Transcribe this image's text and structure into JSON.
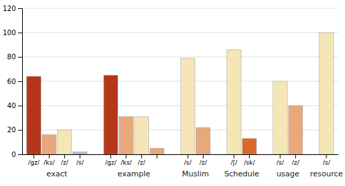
{
  "chart_data": {
    "type": "bar",
    "groups": [
      {
        "name": "exact",
        "categories": [
          "/gz/",
          "/ks/",
          "/z/",
          "/s/"
        ],
        "values": [
          64,
          16,
          20,
          2
        ],
        "colors": [
          "#b5371a",
          "#e8a87c",
          "#f5e6b8",
          "#a8c4d4"
        ]
      },
      {
        "name": "example",
        "categories": [
          "/gz/",
          "/ks/",
          "/z/",
          null
        ],
        "values": [
          65,
          31,
          31,
          5
        ],
        "colors": [
          "#b5371a",
          "#e8a87c",
          "#f5e6b8",
          "#e8a87c"
        ]
      },
      {
        "name": "Muslim",
        "categories": [
          "/s/",
          "/z/"
        ],
        "values": [
          79,
          22
        ],
        "colors": [
          "#f5e6b8",
          "#e8a87c"
        ]
      },
      {
        "name": "Schedule",
        "categories": [
          "/ʃ/",
          "/sk/"
        ],
        "values": [
          86,
          13
        ],
        "colors": [
          "#f5e6b8",
          "#d96a2a"
        ]
      },
      {
        "name": "usage",
        "categories": [
          "/s/",
          "/z/"
        ],
        "values": [
          60,
          40
        ],
        "colors": [
          "#f5e6b8",
          "#e8a87c"
        ]
      },
      {
        "name": "resource",
        "categories": [
          "/s/"
        ],
        "values": [
          100
        ],
        "colors": [
          "#f5e6b8"
        ]
      }
    ],
    "ylim": [
      0,
      120
    ],
    "yticks": [
      0,
      20,
      40,
      60,
      80,
      100,
      120
    ],
    "grid": true
  }
}
